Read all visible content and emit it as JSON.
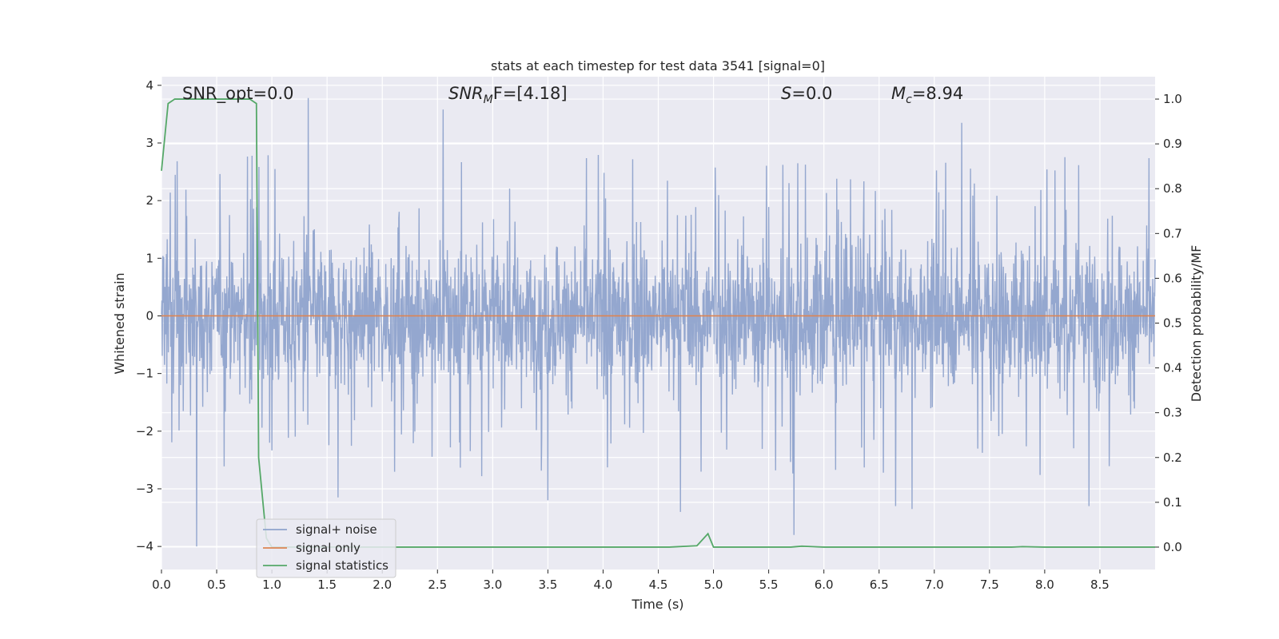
{
  "chart_data": {
    "type": "line",
    "title": "stats at each timestep for test data 3541 [signal=0]",
    "xlabel": "Time (s)",
    "ylabel_left": "Whitened strain",
    "ylabel_right": "Detection probability/MF",
    "xlim": [
      0,
      9
    ],
    "ylim_left": [
      -4.4,
      4.15
    ],
    "ylim_right": [
      -0.05,
      1.05
    ],
    "x_ticks": [
      "0.0",
      "0.5",
      "1.0",
      "1.5",
      "2.0",
      "2.5",
      "3.0",
      "3.5",
      "4.0",
      "4.5",
      "5.0",
      "5.5",
      "6.0",
      "6.5",
      "7.0",
      "7.5",
      "8.0",
      "8.5"
    ],
    "x_tick_values": [
      0,
      0.5,
      1,
      1.5,
      2,
      2.5,
      3,
      3.5,
      4,
      4.5,
      5,
      5.5,
      6,
      6.5,
      7,
      7.5,
      8,
      8.5
    ],
    "y_left_ticks": [
      "4",
      "3",
      "2",
      "1",
      "0",
      "−1",
      "−2",
      "−3",
      "−4"
    ],
    "y_left_tick_values": [
      4,
      3,
      2,
      1,
      0,
      -1,
      -2,
      -3,
      -4
    ],
    "y_right_ticks": [
      "1.0",
      "0.9",
      "0.8",
      "0.7",
      "0.6",
      "0.5",
      "0.4",
      "0.3",
      "0.2",
      "0.1",
      "0.0"
    ],
    "y_right_tick_values": [
      1.0,
      0.9,
      0.8,
      0.7,
      0.6,
      0.5,
      0.4,
      0.3,
      0.2,
      0.1,
      0.0
    ],
    "grid": true,
    "legend_position": "lower-left",
    "series": [
      {
        "name": "signal+ noise",
        "color": "#8fa3cc",
        "axis": "left",
        "kind": "noise",
        "duration": 9.0,
        "typical_peak": 1.7,
        "outlier_points": [
          [
            0.32,
            -4.0
          ],
          [
            0.98,
            -2.2
          ],
          [
            1.33,
            3.78
          ],
          [
            1.6,
            -3.15
          ],
          [
            2.55,
            3.58
          ],
          [
            3.5,
            -3.2
          ],
          [
            4.7,
            -3.4
          ],
          [
            5.73,
            -3.8
          ],
          [
            6.65,
            -3.3
          ],
          [
            6.8,
            -3.35
          ],
          [
            7.25,
            3.35
          ],
          [
            8.4,
            -3.3
          ]
        ]
      },
      {
        "name": "signal only",
        "color": "#dd8452",
        "axis": "left",
        "x": [
          0,
          9
        ],
        "y": [
          0,
          0
        ]
      },
      {
        "name": "signal statistics",
        "color": "#55a868",
        "axis": "right",
        "x": [
          0,
          0.06,
          0.12,
          0.2,
          0.3,
          0.4,
          0.5,
          0.6,
          0.7,
          0.8,
          0.86,
          0.88,
          0.95,
          1.0,
          1.2,
          1.5,
          2.0,
          3.0,
          4.0,
          4.6,
          4.85,
          4.95,
          5.0,
          5.5,
          5.7,
          5.8,
          5.9,
          6.0,
          7.0,
          7.7,
          7.8,
          8.0,
          8.5,
          9.0
        ],
        "y": [
          0.84,
          0.99,
          1.0,
          1.0,
          1.0,
          1.0,
          1.0,
          1.0,
          1.0,
          1.0,
          0.99,
          0.2,
          0.02,
          0.0,
          0.0,
          0.0,
          0.0,
          0.0,
          0.0,
          0.0,
          0.003,
          0.03,
          0.0,
          0.0,
          0.0,
          0.002,
          0.001,
          0.0,
          0.0,
          0.0,
          0.001,
          0.0,
          0.0,
          0.0
        ]
      }
    ],
    "annotations": [
      {
        "label": "SNR_opt=0.0"
      },
      {
        "prefix": "SNR",
        "sub": "M",
        "suffix": "F=[4.18]"
      },
      {
        "prefix": "S",
        "suffix": "=0.0"
      },
      {
        "prefix": "M",
        "sub": "c",
        "suffix": "=8.94"
      }
    ]
  }
}
